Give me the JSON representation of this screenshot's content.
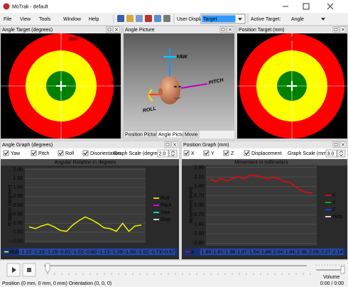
{
  "window": {
    "title": "MoTrak - default"
  },
  "menu": [
    "File",
    "View",
    "Tools",
    "Window",
    "Help"
  ],
  "toolbar": {
    "user_display_label": "User Display:",
    "user_display_value": "Target",
    "active_target_label": "Active Target:",
    "active_target_value": "Angle"
  },
  "angle_target": {
    "title": "Angle Target (degrees)",
    "top_label": "Roll",
    "right_label": "Yaw"
  },
  "angle_picture": {
    "title": "Angle Picture",
    "labels": [
      "YAW",
      "PITCH",
      "ROLL"
    ],
    "tabs": [
      "Position Picture",
      "Angle Picture",
      "Movie"
    ]
  },
  "position_target": {
    "title": "Position Target (mm)",
    "top_label": "Z",
    "right_label": "X"
  },
  "angle_graph": {
    "title": "Angle Graph (degrees)",
    "checkboxes": [
      "Yaw",
      "Pitch",
      "Roll",
      "Disorientation"
    ],
    "scale_label": "Graph Scale (degree)",
    "scale_value": "2.0",
    "chart_data": {
      "type": "line",
      "title": "Angular Rotation in degrees",
      "y_label": "Rotation (degrees)",
      "ylim": [
        -2.1,
        2.1
      ],
      "yticks": [
        {
          "value": 2,
          "label": "2.00"
        },
        {
          "value": 1.5,
          "label": "1.50"
        },
        {
          "value": 1,
          "label": "1.00"
        },
        {
          "value": 0.5,
          "label": "0.50"
        },
        {
          "value": 0,
          "label": "0.00"
        },
        {
          "value": -0.5,
          "label": "-0.50"
        },
        {
          "value": -1,
          "label": "-1.00"
        },
        {
          "value": -1.5,
          "label": "-1.50"
        },
        {
          "value": -2,
          "label": "-2.00"
        }
      ],
      "grid": true,
      "series": [
        {
          "name": "Roll",
          "color": "#ffff00",
          "values": [
            -1.2,
            -1.3,
            -1.15,
            -1.05,
            -1.2,
            -1.4,
            -1.45,
            -1.1,
            -0.85,
            -0.65,
            -0.8,
            -1.0,
            -1.25,
            -1.3,
            -1.45,
            -1.0,
            -1.45,
            -1.15,
            -1.1
          ]
        },
        {
          "name": "Pitch",
          "color": "#ff00ff",
          "values": []
        },
        {
          "name": "Yaw",
          "color": "#00ffff",
          "values": []
        },
        {
          "name": "Disp",
          "color": "#ffffff",
          "values": []
        }
      ]
    },
    "readout": {
      "name": "Roll",
      "color": "#ffff00",
      "values": [
        "-1.22",
        "-1.33",
        "-1.19",
        "-0.81",
        "-1.02",
        "-0.80",
        "-1.13",
        "-1.39",
        "-1.50",
        "-1.02",
        "-0.73",
        "-0.57"
      ]
    }
  },
  "position_graph": {
    "title": "Position Graph (mm)",
    "checkboxes": [
      "X",
      "Y",
      "Z",
      "Displacement"
    ],
    "scale_label": "Graph Scale (mm)",
    "scale_value": "3.0",
    "chart_data": {
      "type": "line",
      "title": "Movement in millimeters",
      "y_label": "Movement (mm)",
      "ylim": [
        -3,
        3
      ],
      "yticks": [
        {
          "value": 2.8,
          "label": "2.80"
        },
        {
          "value": 2.1,
          "label": "2.10"
        },
        {
          "value": 1.4,
          "label": "1.40"
        },
        {
          "value": 0.7,
          "label": "0.70"
        },
        {
          "value": 0,
          "label": "0.00"
        },
        {
          "value": -0.7,
          "label": "-0.70"
        },
        {
          "value": -1.4,
          "label": "-1.40"
        },
        {
          "value": -2.1,
          "label": "-2.10"
        },
        {
          "value": -2.8,
          "label": "-2.80"
        }
      ],
      "grid": true,
      "series": [
        {
          "name": "X",
          "color": "#ff0000",
          "values": [
            1.95,
            1.75,
            2.0,
            1.8,
            2.0,
            2.1,
            1.95,
            2.25,
            2.2,
            2.1,
            1.95,
            2.05,
            2.0,
            1.75,
            1.7,
            1.4,
            1.1,
            0.95,
            0.9
          ]
        },
        {
          "name": "Y",
          "color": "#00cc00",
          "values": []
        },
        {
          "name": "Z",
          "color": "#0050ff",
          "values": []
        },
        {
          "name": "Disp",
          "color": "#ffffff",
          "values": []
        }
      ]
    },
    "readout": {
      "name": "X",
      "color": "#ff0000",
      "values": [
        "1.88",
        "1.81",
        "1.38",
        "1.97",
        "1.54",
        "1.88",
        "2.04",
        "1.84",
        "2.36",
        "2.09",
        "2.27",
        "2.14"
      ]
    }
  },
  "playback": {
    "volume_label": "Volume"
  },
  "status": {
    "text": "Position (0 mm, 0 mm, 0 mm) Orientation (0, 0, 0)",
    "time": "0:00 / 0:00"
  }
}
